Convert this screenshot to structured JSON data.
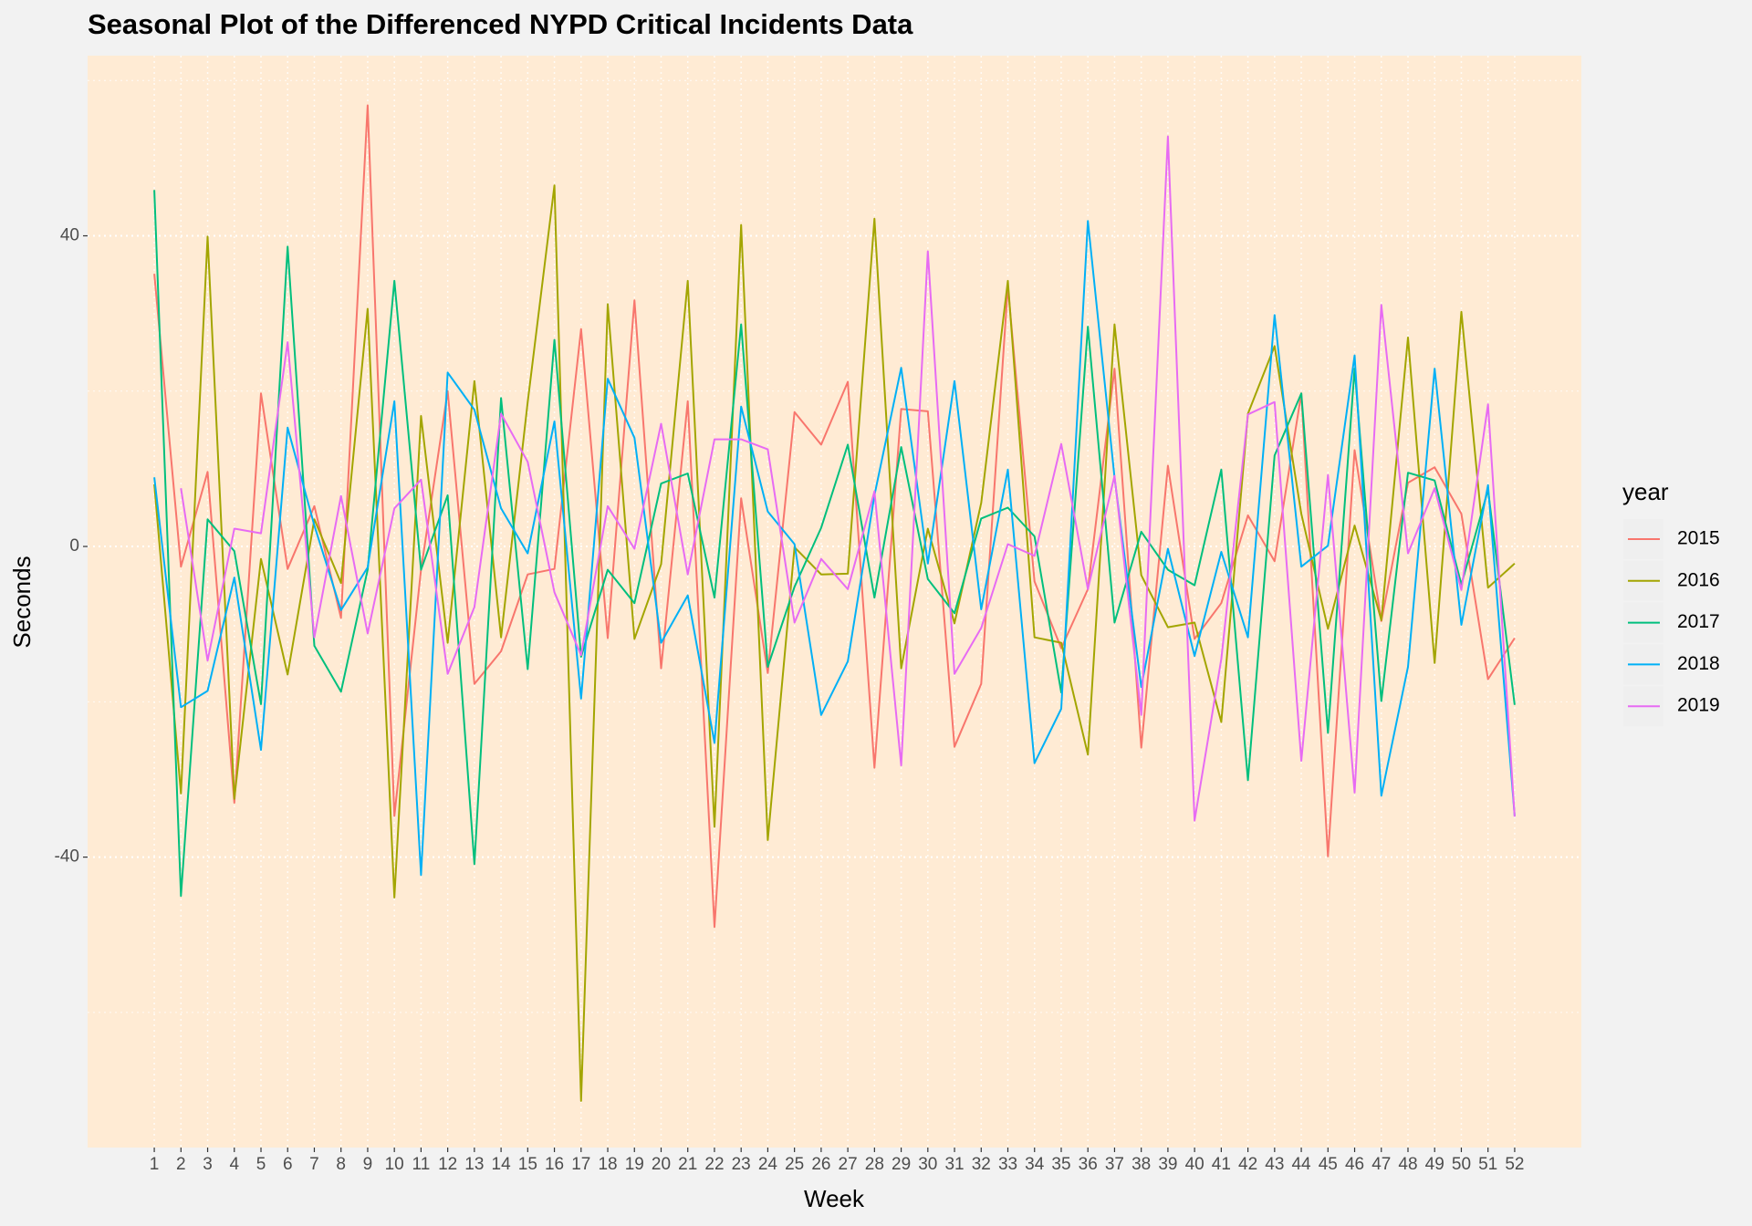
{
  "chart_data": {
    "type": "line",
    "title": "Seasonal Plot of the Differenced NYPD Critical Incidents Data",
    "x_label": "Week",
    "y_label": "Seconds",
    "legend_title": "year",
    "legend": "right",
    "x": [
      1,
      2,
      3,
      4,
      5,
      6,
      7,
      8,
      9,
      10,
      11,
      12,
      13,
      14,
      15,
      16,
      17,
      18,
      19,
      20,
      21,
      22,
      23,
      24,
      25,
      26,
      27,
      28,
      29,
      30,
      31,
      32,
      33,
      34,
      35,
      36,
      37,
      38,
      39,
      40,
      41,
      42,
      43,
      44,
      45,
      46,
      47,
      48,
      49,
      50,
      51,
      52
    ],
    "xlim": [
      -1.5,
      54.5
    ],
    "xticks": [
      1,
      2,
      3,
      4,
      5,
      6,
      7,
      8,
      9,
      10,
      11,
      12,
      13,
      14,
      15,
      16,
      17,
      18,
      19,
      20,
      21,
      22,
      23,
      24,
      25,
      26,
      27,
      28,
      29,
      30,
      31,
      32,
      33,
      34,
      35,
      36,
      37,
      38,
      39,
      40,
      41,
      42,
      43,
      44,
      45,
      46,
      47,
      48,
      49,
      50,
      51,
      52
    ],
    "ylim": [
      -77.4,
      63.2
    ],
    "yticks": [
      -40,
      0,
      40
    ],
    "yminor": [
      -60,
      -20,
      20,
      60
    ],
    "grid": true,
    "series": [
      {
        "name": "2015",
        "color": "#F8766D",
        "values": [
          35.1,
          -2.6,
          9.6,
          -33,
          19.7,
          -2.9,
          5.2,
          -9.2,
          56.8,
          -34.7,
          -3,
          20,
          -17.7,
          -13.5,
          -3.6,
          -2.9,
          28,
          -11.8,
          31.7,
          -15.7,
          18.7,
          -49,
          6.2,
          -16.3,
          17.3,
          13.1,
          21.2,
          -28.5,
          17.7,
          17.4,
          -25.8,
          -17.7,
          33.5,
          -4.5,
          -13.1,
          -5.5,
          22.9,
          -25.9,
          10.4,
          -11.9,
          -7.3,
          4,
          -1.9,
          19.7,
          -39.9,
          12.4,
          -9.6,
          8.2,
          10.2,
          4.2,
          -17.1,
          -11.8
        ]
      },
      {
        "name": "2016",
        "color": "#A3A500",
        "values": [
          8,
          -31.8,
          39.9,
          -32.5,
          -1.6,
          -16.5,
          3.5,
          -4.7,
          30.6,
          -45.2,
          16.8,
          -12.4,
          21.3,
          -11.7,
          18.6,
          46.5,
          -71.4,
          31.2,
          -11.9,
          -2.3,
          34.2,
          -36.1,
          41.4,
          -37.8,
          -0.1,
          -3.6,
          -3.5,
          42.2,
          -15.7,
          2.3,
          -9.9,
          5.6,
          34.2,
          -11.7,
          -12.4,
          -26.8,
          28.6,
          -3.7,
          -10.4,
          -9.8,
          -22.6,
          17.1,
          25.8,
          4.2,
          -10.6,
          2.7,
          -9.5,
          26.9,
          -15,
          30.2,
          -5.3,
          -2.2
        ]
      },
      {
        "name": "2017",
        "color": "#00BF7D",
        "values": [
          45.9,
          -45,
          3.5,
          -0.6,
          -20.3,
          38.6,
          -12.8,
          -18.7,
          -3,
          34.2,
          -3,
          6.6,
          -40.9,
          19.1,
          -15.8,
          26.6,
          -14.2,
          -3,
          -7.3,
          8.1,
          9.4,
          -6.6,
          28.6,
          -15.5,
          -5.2,
          2.4,
          13.1,
          -6.6,
          12.8,
          -4.2,
          -8.6,
          3.6,
          5,
          1.3,
          -18.8,
          28.3,
          -9.8,
          1.9,
          -3,
          -5,
          9.9,
          -30.1,
          11.7,
          19.7,
          -24,
          22.9,
          -19.9,
          9.5,
          8.5,
          -4.9,
          7.3,
          -20.4
        ]
      },
      {
        "name": "2018",
        "color": "#00B0F6",
        "values": [
          8.9,
          -20.7,
          -18.6,
          -4,
          -26.2,
          15.3,
          2.7,
          -8.2,
          -2.7,
          18.7,
          -42.3,
          22.4,
          17.6,
          4.9,
          -0.9,
          16.1,
          -19.6,
          21.6,
          14,
          -12.4,
          -6.3,
          -25.3,
          18,
          4.5,
          0.3,
          -21.7,
          -14.8,
          6.6,
          23,
          -2.2,
          21.3,
          -8.1,
          9.9,
          -27.9,
          -20.9,
          41.9,
          8.9,
          -18.1,
          -0.3,
          -14.1,
          -0.7,
          -11.7,
          29.8,
          -2.6,
          0.1,
          24.6,
          -32.1,
          -15.5,
          22.9,
          -10.1,
          7.9,
          -34.7
        ]
      },
      {
        "name": "2019",
        "color": "#E76BF3",
        "values": [
          null,
          7.5,
          -14.7,
          2.3,
          1.7,
          26.3,
          -11.7,
          6.5,
          -11.2,
          4.9,
          8.6,
          -16.4,
          -7.8,
          17.1,
          10.9,
          -5.9,
          -14,
          5.2,
          -0.3,
          15.8,
          -3.6,
          13.8,
          13.8,
          12.5,
          -9.8,
          -1.6,
          -5.5,
          7.1,
          -28.2,
          38,
          -16.4,
          -10.5,
          0.3,
          -1.2,
          13.2,
          -5.5,
          9.1,
          -21.7,
          52.8,
          -35.3,
          -14.5,
          17,
          18.6,
          -27.6,
          9.2,
          -31.7,
          31.1,
          -0.9,
          7.5,
          -5.6,
          18.3,
          -34.8
        ]
      }
    ]
  }
}
